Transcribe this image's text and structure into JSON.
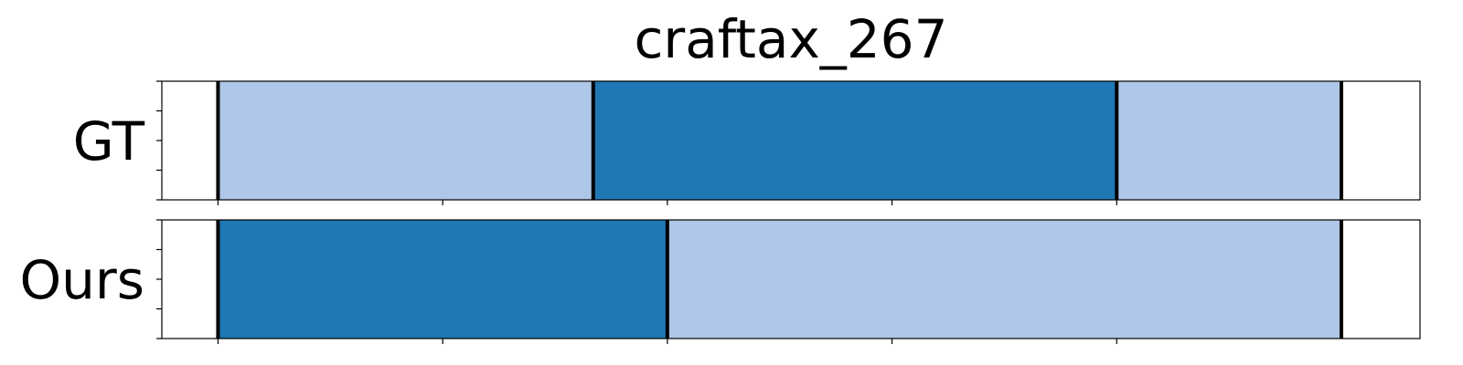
{
  "chart_data": {
    "type": "bar",
    "orientation": "horizontal-segments",
    "title": "craftax_267",
    "xlim": [
      0,
      100
    ],
    "x_ticks": [
      5,
      25,
      45,
      65,
      85
    ],
    "rows": [
      {
        "label": "GT",
        "segments": [
          {
            "start": 5,
            "end": 38.4,
            "class": "light"
          },
          {
            "start": 38.4,
            "end": 85,
            "class": "dark"
          },
          {
            "start": 85,
            "end": 105,
            "class": "light"
          }
        ],
        "boundaries": [
          5,
          38.4,
          85,
          105
        ]
      },
      {
        "label": "Ours",
        "segments": [
          {
            "start": 5,
            "end": 45,
            "class": "dark"
          },
          {
            "start": 45,
            "end": 105,
            "class": "light"
          }
        ],
        "boundaries": [
          5,
          45,
          105
        ]
      }
    ],
    "xmax": 112,
    "colors": {
      "light": "#aec7e8",
      "dark": "#1f77b4",
      "boundary": "#000000"
    },
    "grid": false,
    "legend": "none"
  }
}
